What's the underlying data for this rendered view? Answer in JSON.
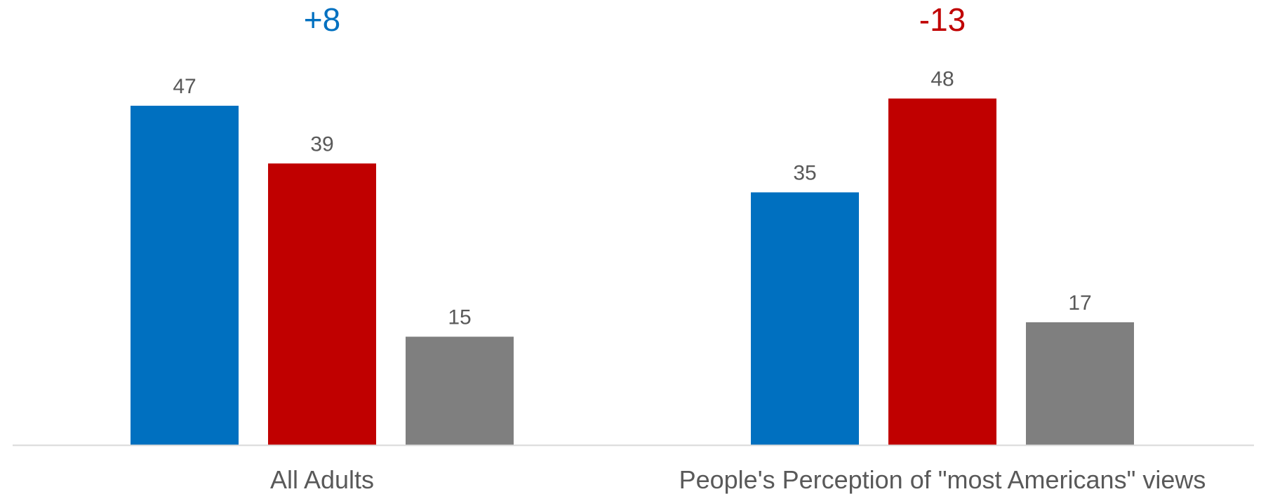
{
  "chart_data": {
    "type": "bar",
    "categories": [
      "All Adults",
      "People's Perception of \"most Americans\" views"
    ],
    "series": [
      {
        "values": [
          47,
          35
        ],
        "color": "#0070C0"
      },
      {
        "values": [
          39,
          48
        ],
        "color": "#C00000"
      },
      {
        "values": [
          15,
          17
        ],
        "color": "#7F7F7F"
      }
    ],
    "differences": [
      {
        "label": "+8",
        "color": "#0070C0"
      },
      {
        "label": "-13",
        "color": "#C00000"
      }
    ],
    "title": "",
    "xlabel": "",
    "ylabel": "",
    "ylim": [
      0,
      50
    ],
    "grid": false,
    "legend": "none",
    "axis_color": "#D9D9D9"
  }
}
